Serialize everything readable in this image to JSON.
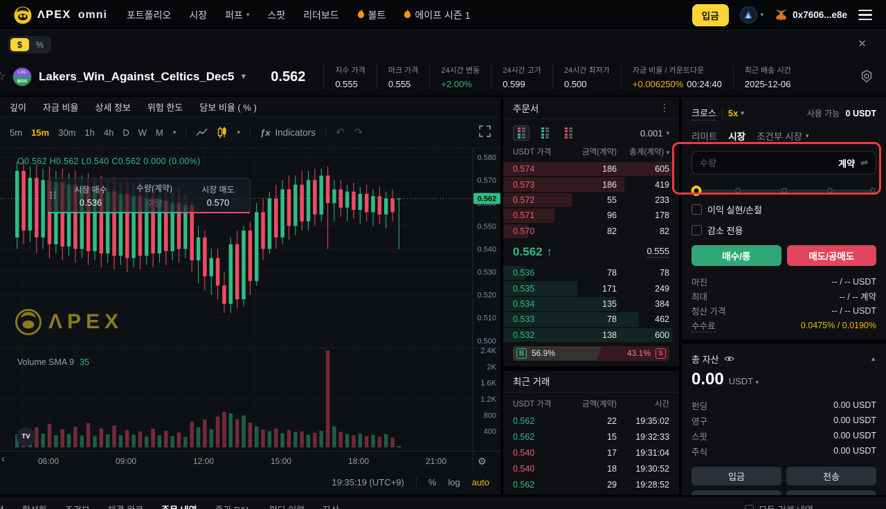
{
  "colors": {
    "green": "#2EBD85",
    "red": "#F24A61",
    "yellow": "#F0B90B",
    "brand_yellow": "#FCD535",
    "annotation": "#EC3B43"
  },
  "navbar": {
    "brand": "ΛPEX",
    "brand2": "omni",
    "items": [
      {
        "label": "포트폴리오"
      },
      {
        "label": "시장"
      },
      {
        "label": "퍼프",
        "caret": true
      },
      {
        "label": "스팟"
      },
      {
        "label": "리더보드"
      },
      {
        "label": "볼트",
        "flame": true
      },
      {
        "label": "에이프 시즌 1",
        "flame": true
      }
    ],
    "deposit_label": "입금",
    "wallet": "0x7606...e8e"
  },
  "subbar": {
    "currency": "$",
    "percent": "%"
  },
  "market": {
    "name": "Lakers_Win_Against_Celtics_Dec5",
    "price": "0.562",
    "badge_top": "LAL",
    "badge_bottom": "BOS",
    "stats": [
      {
        "label": "지수 가격",
        "value": "0.555"
      },
      {
        "label": "마크 가격",
        "value": "0.555"
      },
      {
        "label": "24시간 변동",
        "value": "+2.00%",
        "value_class": "v-green"
      },
      {
        "label": "24시간 고가",
        "value": "0.599"
      },
      {
        "label": "24시간 최저가",
        "value": "0.500"
      },
      {
        "label": "자금 비율 / 카운트다운",
        "value": "+0.006250%",
        "value_class": "v-yellow",
        "extra": "00:24:40"
      },
      {
        "label": "최근 배송 시간",
        "value": "2025-12-06"
      }
    ]
  },
  "chart_tabs": [
    "깊이",
    "자금 비율",
    "상세 정보",
    "위험 한도",
    "담보 비율 ( % )"
  ],
  "toolbar": {
    "timeframes": [
      "5m",
      "15m",
      "30m",
      "1h",
      "4h",
      "D",
      "W",
      "M"
    ],
    "selected_timeframe": "15m",
    "indicators_label": "Indicators"
  },
  "chart": {
    "ohlc": "O0.562 H0.562 L0.540 C0.562 0.000 (0.00%)",
    "volume_label": "Volume SMA 9",
    "volume_value": "35",
    "watermark": "ΛPEX",
    "float_panel": {
      "buy_label": "시장 매수",
      "buy_price": "0.536",
      "qty_label": "수량(계약)",
      "qty_placeholder": "수량",
      "sell_label": "시장 매도",
      "sell_price": "0.570"
    },
    "clock": "19:35:19 (UTC+9)",
    "scale_percent": "%",
    "scale_log": "log",
    "scale_auto": "auto"
  },
  "chart_data": {
    "type": "candlestick",
    "title": "Lakers_Win_Against_Celtics_Dec5 15m",
    "current_price": 0.562,
    "price_ticks": [
      0.58,
      0.57,
      0.56,
      0.55,
      0.54,
      0.53,
      0.52,
      0.51,
      0.5
    ],
    "volume_ticks": [
      {
        "v": 2400,
        "label": "2.4K"
      },
      {
        "v": 2000,
        "label": "2K"
      },
      {
        "v": 1600,
        "label": "1.6K"
      },
      {
        "v": 1200,
        "label": "1.2K"
      },
      {
        "v": 800,
        "label": "800"
      },
      {
        "v": 400,
        "label": "400"
      }
    ],
    "time_ticks": [
      "06:00",
      "09:00",
      "12:00",
      "15:00",
      "18:00",
      "21:00"
    ],
    "candles": [
      [
        0.545,
        0.578,
        0.54,
        0.574,
        320
      ],
      [
        0.574,
        0.578,
        0.542,
        0.548,
        420
      ],
      [
        0.548,
        0.576,
        0.543,
        0.571,
        360
      ],
      [
        0.571,
        0.577,
        0.538,
        0.545,
        500
      ],
      [
        0.545,
        0.575,
        0.54,
        0.57,
        340
      ],
      [
        0.57,
        0.576,
        0.536,
        0.542,
        580
      ],
      [
        0.542,
        0.574,
        0.538,
        0.569,
        300
      ],
      [
        0.569,
        0.575,
        0.535,
        0.541,
        450
      ],
      [
        0.541,
        0.573,
        0.537,
        0.568,
        330
      ],
      [
        0.568,
        0.574,
        0.534,
        0.54,
        510
      ],
      [
        0.54,
        0.572,
        0.536,
        0.567,
        290
      ],
      [
        0.567,
        0.573,
        0.533,
        0.539,
        600
      ],
      [
        0.539,
        0.571,
        0.535,
        0.566,
        280
      ],
      [
        0.566,
        0.572,
        0.532,
        0.538,
        470
      ],
      [
        0.538,
        0.57,
        0.534,
        0.565,
        320
      ],
      [
        0.565,
        0.571,
        0.531,
        0.537,
        540
      ],
      [
        0.537,
        0.569,
        0.533,
        0.564,
        300
      ],
      [
        0.564,
        0.57,
        0.53,
        0.536,
        430
      ],
      [
        0.536,
        0.568,
        0.532,
        0.563,
        310
      ],
      [
        0.563,
        0.569,
        0.531,
        0.537,
        390
      ],
      [
        0.537,
        0.567,
        0.533,
        0.562,
        270
      ],
      [
        0.562,
        0.568,
        0.532,
        0.538,
        460
      ],
      [
        0.538,
        0.566,
        0.534,
        0.561,
        300
      ],
      [
        0.561,
        0.567,
        0.533,
        0.539,
        410
      ],
      [
        0.539,
        0.565,
        0.535,
        0.56,
        280
      ],
      [
        0.56,
        0.566,
        0.534,
        0.54,
        370
      ],
      [
        0.54,
        0.564,
        0.536,
        0.559,
        260
      ],
      [
        0.559,
        0.561,
        0.53,
        0.535,
        640
      ],
      [
        0.535,
        0.55,
        0.525,
        0.545,
        500
      ],
      [
        0.545,
        0.548,
        0.522,
        0.528,
        690
      ],
      [
        0.528,
        0.54,
        0.52,
        0.536,
        450
      ],
      [
        0.536,
        0.54,
        0.518,
        0.524,
        760
      ],
      [
        0.524,
        0.53,
        0.512,
        0.516,
        880
      ],
      [
        0.516,
        0.545,
        0.512,
        0.542,
        840
      ],
      [
        0.542,
        0.548,
        0.514,
        0.518,
        700
      ],
      [
        0.518,
        0.55,
        0.515,
        0.548,
        790
      ],
      [
        0.548,
        0.552,
        0.52,
        0.526,
        610
      ],
      [
        0.526,
        0.56,
        0.524,
        0.556,
        520
      ],
      [
        0.556,
        0.562,
        0.535,
        0.54,
        440
      ],
      [
        0.54,
        0.565,
        0.538,
        0.562,
        400
      ],
      [
        0.562,
        0.568,
        0.54,
        0.545,
        470
      ],
      [
        0.545,
        0.57,
        0.542,
        0.566,
        350
      ],
      [
        0.566,
        0.572,
        0.544,
        0.55,
        430
      ],
      [
        0.55,
        0.572,
        0.546,
        0.568,
        380
      ],
      [
        0.568,
        0.574,
        0.548,
        0.552,
        400
      ],
      [
        0.552,
        0.574,
        0.548,
        0.57,
        310
      ],
      [
        0.57,
        0.575,
        0.55,
        0.555,
        360
      ],
      [
        0.555,
        0.575,
        0.552,
        0.572,
        410
      ],
      [
        0.572,
        0.576,
        0.54,
        0.56,
        2400
      ],
      [
        0.56,
        0.57,
        0.552,
        0.566,
        520
      ],
      [
        0.566,
        0.57,
        0.554,
        0.558,
        380
      ],
      [
        0.558,
        0.568,
        0.552,
        0.565,
        330
      ],
      [
        0.565,
        0.569,
        0.553,
        0.557,
        300
      ],
      [
        0.557,
        0.567,
        0.551,
        0.564,
        340
      ],
      [
        0.564,
        0.568,
        0.552,
        0.556,
        280
      ],
      [
        0.556,
        0.566,
        0.55,
        0.563,
        310
      ],
      [
        0.563,
        0.567,
        0.551,
        0.555,
        260
      ],
      [
        0.555,
        0.565,
        0.549,
        0.562,
        330
      ],
      [
        0.562,
        0.566,
        0.552,
        0.556,
        240
      ],
      [
        0.562,
        0.562,
        0.54,
        0.562,
        35
      ]
    ]
  },
  "orderbook": {
    "title": "주문서",
    "tick_size": "0.001",
    "columns": [
      "USDT 가격",
      "금액(계약)",
      "총계(계약)"
    ],
    "asks": [
      {
        "price": "0.574",
        "amount": "186",
        "total": "605",
        "depth": 97
      },
      {
        "price": "0.573",
        "amount": "186",
        "total": "419",
        "depth": 69
      },
      {
        "price": "0.572",
        "amount": "55",
        "total": "233",
        "depth": 39
      },
      {
        "price": "0.571",
        "amount": "96",
        "total": "178",
        "depth": 29
      },
      {
        "price": "0.570",
        "amount": "82",
        "total": "82",
        "depth": 14
      }
    ],
    "current": {
      "price": "0.562",
      "direction": "up",
      "mark": "0.555"
    },
    "bids": [
      {
        "price": "0.536",
        "amount": "78",
        "total": "78",
        "depth": 13
      },
      {
        "price": "0.535",
        "amount": "171",
        "total": "249",
        "depth": 42
      },
      {
        "price": "0.534",
        "amount": "135",
        "total": "384",
        "depth": 64
      },
      {
        "price": "0.533",
        "amount": "78",
        "total": "462",
        "depth": 77
      },
      {
        "price": "0.532",
        "amount": "138",
        "total": "600",
        "depth": 96
      }
    ],
    "ratio": {
      "buy_label": "B",
      "buy_pct": "56.9%",
      "sell_pct": "43.1%",
      "sell_label": "S"
    }
  },
  "trades": {
    "title": "최근 거래",
    "columns": [
      "USDT 가격",
      "금액(계약)",
      "시간"
    ],
    "rows": [
      {
        "price": "0.562",
        "amount": "22",
        "time": "19:35:02",
        "side": "up"
      },
      {
        "price": "0.562",
        "amount": "15",
        "time": "19:32:33",
        "side": "up"
      },
      {
        "price": "0.540",
        "amount": "17",
        "time": "19:31:04",
        "side": "down"
      },
      {
        "price": "0.540",
        "amount": "18",
        "time": "19:30:52",
        "side": "down"
      },
      {
        "price": "0.562",
        "amount": "29",
        "time": "19:28:52",
        "side": "up"
      }
    ]
  },
  "panel": {
    "margin_mode": "크로스",
    "leverage": "5x",
    "available_label": "사용 가능",
    "available_value": "0 USDT",
    "tabs": [
      "리미트",
      "시장",
      "조건부 시장"
    ],
    "selected_tab": "시장",
    "qty_placeholder": "수량",
    "qty_unit": "계약",
    "checkboxes": [
      "이익 실현/손절",
      "감소 전용"
    ],
    "buy_label": "매수/롱",
    "sell_label": "매도/공매도",
    "info": [
      {
        "label": "마진",
        "value": "-- / -- USDT"
      },
      {
        "label": "최대",
        "value": "-- / -- 계약"
      },
      {
        "label": "청산 가격",
        "value": "-- / -- USDT"
      },
      {
        "label": "수수료",
        "value": "0.0475% / 0.0190%",
        "value_class": "yellow",
        "dashed": true
      }
    ]
  },
  "assets": {
    "title": "총 자산",
    "total": "0.00",
    "currency": "USDT",
    "rows": [
      {
        "label": "펀딩",
        "value": "0.00 USDT"
      },
      {
        "label": "영구",
        "value": "0.00 USDT"
      },
      {
        "label": "스팟",
        "value": "0.00 USDT"
      },
      {
        "label": "주식",
        "value": "0.00 USDT"
      }
    ],
    "buttons": [
      "입금",
      "전송",
      "출금",
      "변환"
    ]
  },
  "bottom": {
    "tabs": [
      {
        "label": "포지션"
      },
      {
        "label": "활성화"
      },
      {
        "label": "조건부"
      },
      {
        "label": "체결 완료"
      },
      {
        "label": "주문 내역",
        "selected": true
      },
      {
        "label": "종가 P&L"
      },
      {
        "label": "펀딩 이력"
      },
      {
        "label": "자산"
      }
    ],
    "checkbox_label": "모든 거래 내역"
  }
}
